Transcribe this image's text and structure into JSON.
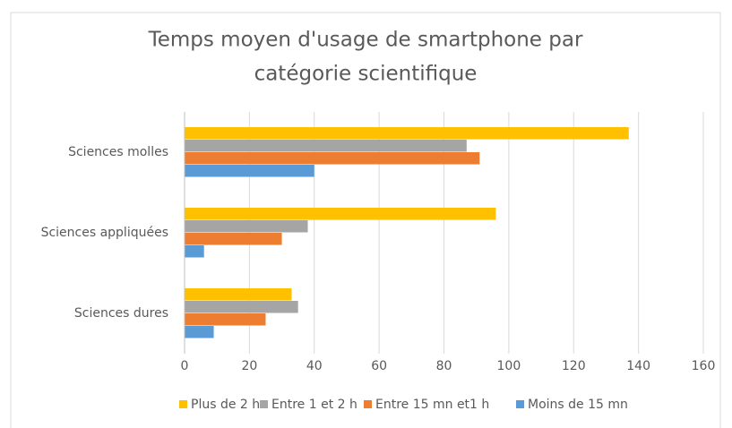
{
  "chart_data": {
    "type": "hbar",
    "title": [
      "Temps moyen d'usage de smartphone par",
      "catégorie scientifique"
    ],
    "categories": [
      "Sciences molles",
      "Sciences appliquées",
      "Sciences dures"
    ],
    "series": [
      {
        "name": "Plus de 2 h",
        "color": "#FFC000",
        "values": [
          137,
          96,
          33
        ]
      },
      {
        "name": "Entre 1 et 2 h",
        "color": "#A5A5A5",
        "values": [
          87,
          38,
          35
        ]
      },
      {
        "name": "Entre 15 mn et1 h",
        "color": "#ED7D31",
        "values": [
          91,
          30,
          25
        ]
      },
      {
        "name": "Moins de 15 mn",
        "color": "#5B9BD5",
        "values": [
          40,
          6,
          9
        ]
      }
    ],
    "xlim": [
      0,
      160
    ],
    "xticks": [
      0,
      20,
      40,
      60,
      80,
      100,
      120,
      140,
      160
    ],
    "grid": true,
    "legend": "bottom"
  }
}
